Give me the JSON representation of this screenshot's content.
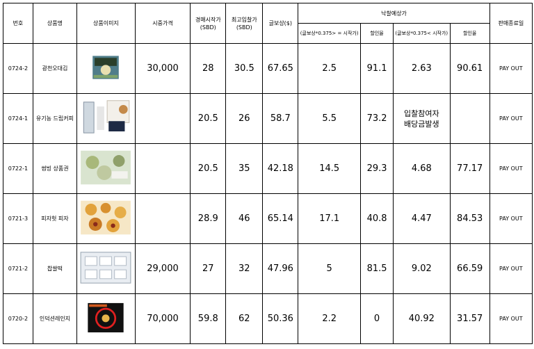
{
  "headers": {
    "no": "번호",
    "name": "상품명",
    "image": "상품이미지",
    "market": "시중가격",
    "auction_start": "경매시작가",
    "auction_start_unit": "(SBD)",
    "max_bid": "최고입찰가",
    "max_bid_unit": "(SBD)",
    "reward": "글보상($)",
    "expected": "낙찰예상가",
    "sub1": "(글보상*0.375> = 시작가)",
    "sub2": "할인율",
    "sub3": "(글보상*0.375< 시작가)",
    "sub4": "할인율",
    "end": "판매종료일"
  },
  "rows": [
    {
      "no": "0724-2",
      "name": "광천오대김",
      "market": "30,000",
      "start": "28",
      "maxbid": "30.5",
      "reward": "67.65",
      "e1": "2.5",
      "d1": "91.1",
      "e2": "2.63",
      "d2": "90.61",
      "status": "PAY OUT",
      "icon": "seaweed-product-icon"
    },
    {
      "no": "0724-1",
      "name": "유기농 드립커피",
      "market": "",
      "start": "20.5",
      "maxbid": "26",
      "reward": "58.7",
      "e1": "5.5",
      "d1": "73.2",
      "e2_line1": "입찰참여자",
      "e2_line2": "배당금발생",
      "d2": "",
      "status": "PAY OUT",
      "icon": "drip-coffee-product-icon"
    },
    {
      "no": "0722-1",
      "name": "썸빙 상품권",
      "market": "",
      "start": "20.5",
      "maxbid": "35",
      "reward": "42.18",
      "e1": "14.5",
      "d1": "29.3",
      "e2": "4.68",
      "d2": "77.17",
      "status": "PAY OUT",
      "icon": "food-voucher-product-icon"
    },
    {
      "no": "0721-3",
      "name": "피자헛 피자",
      "market": "",
      "start": "28.9",
      "maxbid": "46",
      "reward": "65.14",
      "e1": "17.1",
      "d1": "40.8",
      "e2": "4.47",
      "d2": "84.53",
      "status": "PAY OUT",
      "icon": "pizza-product-icon"
    },
    {
      "no": "0721-2",
      "name": "찹쌀떡",
      "market": "29,000",
      "start": "27",
      "maxbid": "32",
      "reward": "47.96",
      "e1": "5",
      "d1": "81.5",
      "e2": "9.02",
      "d2": "66.59",
      "status": "PAY OUT",
      "icon": "rice-cake-product-icon"
    },
    {
      "no": "0720-2",
      "name": "인덕션레인지",
      "market": "70,000",
      "start": "59.8",
      "maxbid": "62",
      "reward": "50.36",
      "e1": "2.2",
      "d1": "0",
      "e2": "40.92",
      "d2": "31.57",
      "status": "PAY OUT",
      "icon": "induction-range-product-icon"
    }
  ],
  "colors": {
    "highlight": "#e01010",
    "border": "#000000"
  }
}
